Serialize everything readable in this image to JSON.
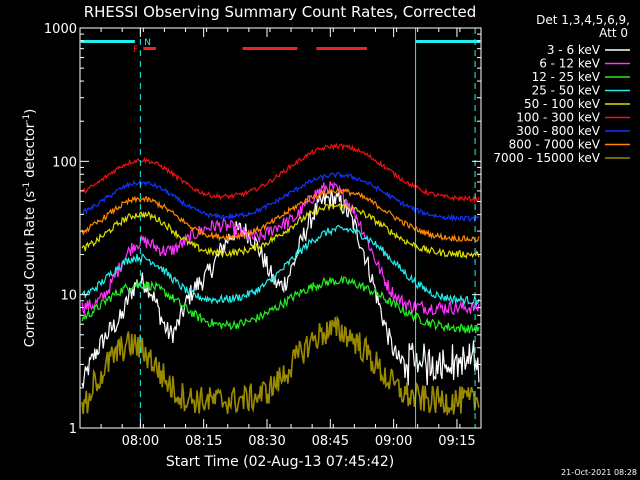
{
  "chart_data": {
    "type": "line",
    "title": "RHESSI Observing Summary Count Rates, Corrected",
    "xlabel": "Start Time (02-Aug-13 07:45:42)",
    "ylabel_main": "Corrected Count Rate (s",
    "ylabel_sup1": "-1",
    "ylabel_mid": " detector",
    "ylabel_sup2": "-1",
    "ylabel_end": ")",
    "yscale": "log",
    "ylim": [
      1,
      1000
    ],
    "xlim_minutes": [
      0,
      95
    ],
    "x_ticks": [
      "08:00",
      "08:15",
      "08:30",
      "08:45",
      "09:00",
      "09:15"
    ],
    "x_tick_minutes": [
      14.3,
      29.3,
      44.3,
      59.3,
      74.3,
      89.3
    ],
    "y_ticks": [
      "1",
      "10",
      "100",
      "1000"
    ],
    "legend_title": "Det 1,3,4,5,6,9,",
    "legend_subtitle": "Att 0",
    "series": [
      {
        "name": "3 - 6 keV",
        "color": "#ffffff"
      },
      {
        "name": "6 - 12 keV",
        "color": "#ff33ff"
      },
      {
        "name": "12 - 25 keV",
        "color": "#22ee22"
      },
      {
        "name": "25 - 50 keV",
        "color": "#22eeee"
      },
      {
        "name": "50 - 100 keV",
        "color": "#dddd00"
      },
      {
        "name": "100 - 300 keV",
        "color": "#ee1111"
      },
      {
        "name": "300 - 800 keV",
        "color": "#1133ff"
      },
      {
        "name": "800 - 7000 keV",
        "color": "#ff8800"
      },
      {
        "name": "7000 - 15000 keV",
        "color": "#9a8a00"
      }
    ],
    "annotations": [
      {
        "label": "F",
        "color": "#ee2222"
      },
      {
        "label": "N",
        "color": "#22eeee"
      }
    ],
    "flag_bars": {
      "night_color": "#22eeee",
      "flare_color": "#ee2222"
    },
    "timestamp": "21-Oct-2021 08:28"
  }
}
